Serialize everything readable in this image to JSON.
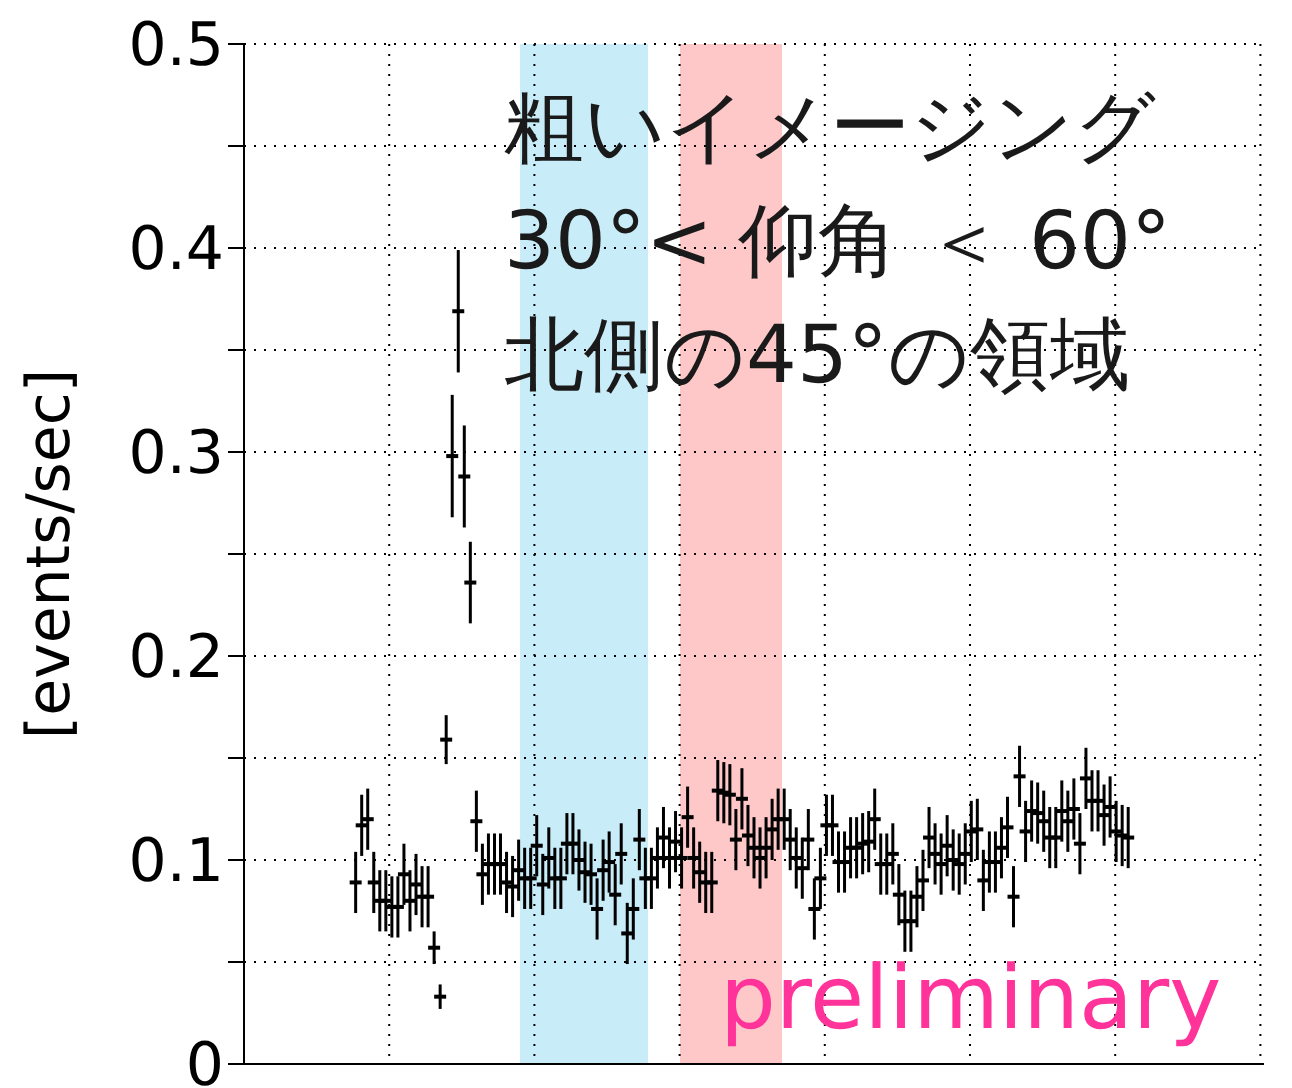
{
  "chart_data": {
    "type": "scatter",
    "ylabel": "[events/sec]",
    "annotations": [
      "粗いイメージング",
      "30°< 仰角 ＜ 60°",
      "北側の45°の領域",
      "preliminary"
    ],
    "categories": [
      null,
      null,
      null,
      null,
      null,
      null,
      null,
      null,
      null,
      null,
      null,
      null,
      null,
      null,
      null,
      null,
      null,
      null,
      null,
      null,
      null,
      null,
      null,
      null,
      null,
      null,
      null,
      null,
      null,
      null,
      null,
      null,
      null,
      null,
      null,
      null,
      null,
      null,
      null,
      null,
      null,
      null,
      null,
      null,
      null,
      null,
      null,
      null,
      null,
      null,
      null,
      null,
      null,
      null,
      null,
      null,
      null,
      null,
      null,
      null,
      null,
      null,
      null,
      null,
      null,
      null,
      null,
      null,
      null,
      null,
      null,
      null,
      null,
      null,
      null,
      null,
      null,
      null,
      null,
      null,
      null,
      null,
      null,
      null,
      null,
      null,
      null,
      null,
      null,
      null,
      null,
      null,
      null,
      null,
      null,
      null,
      null,
      null,
      null,
      null,
      null,
      null,
      null,
      null,
      null,
      null,
      null,
      null,
      null,
      null,
      null,
      null,
      null,
      null,
      null,
      null,
      null,
      null,
      null,
      null,
      null,
      null,
      null,
      null,
      null,
      null,
      null,
      null,
      null,
      null,
      null,
      null,
      null,
      null,
      null,
      null,
      null,
      null,
      null,
      null,
      null,
      null,
      null,
      null,
      null,
      null,
      null,
      null,
      null,
      null,
      null,
      null,
      null,
      null,
      null,
      null,
      null,
      null,
      null,
      null,
      null,
      null,
      null,
      null,
      null,
      null,
      null,
      null,
      null
    ],
    "ylim": [
      0,
      0.5
    ],
    "yticks": [
      0,
      {
        "value": 0.05,
        "label": null
      },
      0.1,
      {
        "value": 0.15,
        "label": null
      },
      0.2,
      {
        "value": 0.25,
        "label": null
      },
      0.3,
      {
        "value": 0.35,
        "label": null
      },
      0.4,
      {
        "value": 0.45,
        "label": null
      },
      0.5
    ],
    "grid": true,
    "series": [
      {
        "color": "#000000",
        "values": [
          null,
          null,
          null,
          null,
          null,
          null,
          null,
          null,
          null,
          null,
          null,
          null,
          null,
          null,
          null,
          null,
          null,
          null,
          0.089,
          0.117,
          0.12,
          0.089,
          0.08,
          0.08,
          0.077,
          0.077,
          0.093,
          0.08,
          0.088,
          0.082,
          0.082,
          0.057,
          0.033,
          0.159,
          0.298,
          0.369,
          0.288,
          0.236,
          0.119,
          0.093,
          0.098,
          0.098,
          0.098,
          0.089,
          0.087,
          0.095,
          0.091,
          0.091,
          0.107,
          0.088,
          0.101,
          0.091,
          0.091,
          0.108,
          0.108,
          0.1,
          0.094,
          0.093,
          0.076,
          0.095,
          0.099,
          0.083,
          0.103,
          0.064,
          0.076,
          0.11,
          0.091,
          0.091,
          0.101,
          0.111,
          0.101,
          0.109,
          0.101,
          0.121,
          0.101,
          0.094,
          0.089,
          0.089,
          0.134,
          0.133,
          0.132,
          0.11,
          0.13,
          0.112,
          0.106,
          0.101,
          0.106,
          0.115,
          0.12,
          0.12,
          0.11,
          0.101,
          0.096,
          0.11,
          0.076,
          0.091,
          0.117,
          0.117,
          0.099,
          0.099,
          0.106,
          0.106,
          0.108,
          0.109,
          0.12,
          0.098,
          0.098,
          0.103,
          0.083,
          0.07,
          0.07,
          0.082,
          0.09,
          0.111,
          0.103,
          0.098,
          0.107,
          0.1,
          0.098,
          0.103,
          0.114,
          0.115,
          0.09,
          0.099,
          0.099,
          0.106,
          0.116,
          0.082,
          0.141,
          0.114,
          0.124,
          0.123,
          0.119,
          0.111,
          0.111,
          0.124,
          0.119,
          0.125,
          0.108,
          0.14,
          0.129,
          0.129,
          0.122,
          0.126,
          0.114,
          0.112,
          0.111,
          null,
          null,
          null,
          null,
          null,
          null,
          null,
          null,
          null,
          null,
          null,
          null,
          null,
          null,
          null,
          null,
          null,
          null,
          null,
          null,
          null,
          null
        ],
        "errors": [
          null,
          null,
          null,
          null,
          null,
          null,
          null,
          null,
          null,
          null,
          null,
          null,
          null,
          null,
          null,
          null,
          null,
          null,
          0.015,
          0.015,
          0.015,
          0.015,
          0.015,
          0.015,
          0.015,
          0.015,
          0.015,
          0.015,
          0.015,
          0.015,
          0.015,
          0.008,
          0.006,
          0.012,
          0.03,
          0.03,
          0.025,
          0.02,
          0.015,
          0.015,
          0.015,
          0.015,
          0.015,
          0.015,
          0.015,
          0.015,
          0.015,
          0.015,
          0.015,
          0.015,
          0.015,
          0.015,
          0.015,
          0.015,
          0.015,
          0.015,
          0.015,
          0.015,
          0.015,
          0.015,
          0.015,
          0.015,
          0.015,
          0.015,
          0.015,
          0.015,
          0.015,
          0.015,
          0.015,
          0.015,
          0.015,
          0.015,
          0.015,
          0.015,
          0.015,
          0.015,
          0.015,
          0.015,
          0.015,
          0.015,
          0.015,
          0.015,
          0.015,
          0.015,
          0.015,
          0.015,
          0.015,
          0.015,
          0.015,
          0.015,
          0.015,
          0.015,
          0.015,
          0.015,
          0.015,
          0.015,
          0.015,
          0.015,
          0.015,
          0.015,
          0.015,
          0.015,
          0.015,
          0.015,
          0.015,
          0.015,
          0.015,
          0.015,
          0.015,
          0.015,
          0.015,
          0.015,
          0.015,
          0.015,
          0.015,
          0.015,
          0.015,
          0.015,
          0.015,
          0.015,
          0.015,
          0.015,
          0.015,
          0.015,
          0.015,
          0.015,
          0.015,
          0.015,
          0.015,
          0.015,
          0.015,
          0.015,
          0.015,
          0.015,
          0.015,
          0.015,
          0.015,
          0.015,
          0.015,
          0.015,
          0.015,
          0.015,
          0.015,
          0.015,
          0.015,
          0.015,
          0.015,
          null,
          null,
          null,
          null,
          null,
          null,
          null,
          null,
          null,
          null,
          null,
          null,
          null,
          null,
          null,
          null,
          null,
          null,
          null,
          null,
          null,
          null
        ]
      }
    ]
  }
}
